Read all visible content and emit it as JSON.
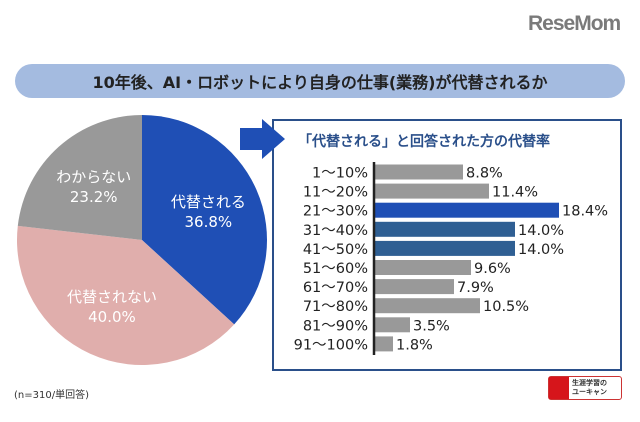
{
  "logo": "ReseMom",
  "title": "10年後、AI・ロボットにより自身の仕事(業務)が代替されるか",
  "note": "(n=310/単回答)",
  "sponsor": {
    "line1": "生涯学習の",
    "line2": "ユーキャン"
  },
  "chart_data": [
    {
      "type": "pie",
      "slices": [
        {
          "label": "代替される",
          "value": 36.8,
          "display": "36.8%",
          "color": "#1f4fb5"
        },
        {
          "label": "代替されない",
          "value": 40.0,
          "display": "40.0%",
          "color": "#e0aeac"
        },
        {
          "label": "わからない",
          "value": 23.2,
          "display": "23.2%",
          "color": "#999999"
        }
      ]
    },
    {
      "type": "bar",
      "orientation": "horizontal",
      "title": "「代替される」と回答された方の代替率",
      "categories": [
        "1～10%",
        "11～20%",
        "21～30%",
        "31～40%",
        "41～50%",
        "51～60%",
        "61～70%",
        "71～80%",
        "81～90%",
        "91～100%"
      ],
      "values": [
        8.8,
        11.4,
        18.4,
        14.0,
        14.0,
        9.6,
        7.9,
        10.5,
        3.5,
        1.8
      ],
      "labels": [
        "8.8%",
        "11.4%",
        "18.4%",
        "14.0%",
        "14.0%",
        "9.6%",
        "7.9%",
        "10.5%",
        "3.5%",
        "1.8%"
      ],
      "colors": [
        "#999999",
        "#999999",
        "#1f4fb5",
        "#2f5f93",
        "#2f5f93",
        "#999999",
        "#999999",
        "#999999",
        "#999999",
        "#999999"
      ]
    }
  ]
}
